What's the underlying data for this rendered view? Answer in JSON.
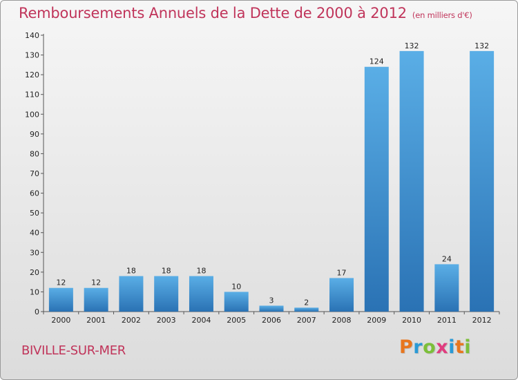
{
  "header": {
    "title": "Remboursements Annuels de la Dette de 2000 à 2012",
    "subtitle": "(en milliers d'€)"
  },
  "footer": {
    "commune": "BIVILLE-SUR-MER",
    "logo_letters": [
      "P",
      "r",
      "o",
      "x",
      "i",
      "t",
      "i"
    ],
    "logo_colors": [
      "#e8761e",
      "#2a9ad6",
      "#7cbf3a",
      "#e03d7f",
      "#2a9ad6",
      "#e8761e",
      "#7cbf3a"
    ]
  },
  "colors": {
    "bar_light": "#5aaee6",
    "bar_dark": "#2a72b4",
    "text": "#c0345a"
  },
  "chart_data": {
    "type": "bar",
    "title": "Remboursements Annuels de la Dette de 2000 à 2012",
    "subtitle": "(en milliers d'€)",
    "categories": [
      "2000",
      "2001",
      "2002",
      "2003",
      "2004",
      "2005",
      "2006",
      "2007",
      "2008",
      "2009",
      "2010",
      "2011",
      "2012"
    ],
    "values": [
      12,
      12,
      18,
      18,
      18,
      10,
      3,
      2,
      17,
      124,
      132,
      24,
      132
    ],
    "ylim": [
      0,
      140
    ],
    "yticks": [
      0,
      10,
      20,
      30,
      40,
      50,
      60,
      70,
      80,
      90,
      100,
      110,
      120,
      130,
      140
    ],
    "grid": false,
    "data_labels": true
  }
}
